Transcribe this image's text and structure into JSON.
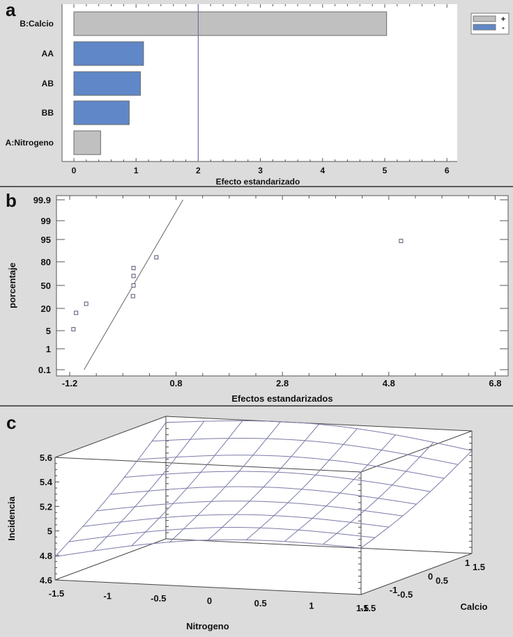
{
  "panels": {
    "a": {
      "letter": "a"
    },
    "b": {
      "letter": "b"
    },
    "c": {
      "letter": "c"
    }
  },
  "colors": {
    "background": "#dcdcdc",
    "plot_bg": "#ffffff",
    "positive_bar": "#c0c0c0",
    "negative_bar": "#6088c8",
    "reference_line": "#7070a8",
    "mesh_line": "#7a7aa8",
    "axis": "#555555"
  },
  "chart_data": [
    {
      "id": "a",
      "type": "bar",
      "orientation": "horizontal",
      "title": "",
      "categories": [
        "B:Calcio",
        "AA",
        "AB",
        "BB",
        "A:Nitrogeno"
      ],
      "values": [
        5.03,
        1.12,
        1.07,
        0.89,
        0.43
      ],
      "signs": [
        "+",
        "-",
        "-",
        "-",
        "+"
      ],
      "xlabel": "Efecto estandarizado",
      "ylabel": "",
      "xlim": [
        -0.2,
        6.2
      ],
      "xticks": [
        0,
        1,
        2,
        3,
        4,
        5,
        6
      ],
      "reference_line": 2.0,
      "legend": [
        {
          "label": "+",
          "color": "#c0c0c0"
        },
        {
          "label": "-",
          "color": "#6088c8"
        }
      ],
      "legend_position": "top-right",
      "grid": false
    },
    {
      "id": "b",
      "type": "scatter",
      "title": "",
      "xlabel": "Efectos estandarizados",
      "ylabel": "porcentaje",
      "xlim": [
        -1.45,
        7.0
      ],
      "xticks": [
        -1.2,
        0.8,
        2.8,
        4.8,
        6.8
      ],
      "yscale": "normal-probability",
      "yticks": [
        0.1,
        1,
        5,
        20,
        50,
        80,
        95,
        99,
        99.9
      ],
      "points": [
        {
          "x": -1.13,
          "y": 6
        },
        {
          "x": -1.08,
          "y": 17
        },
        {
          "x": -0.89,
          "y": 26
        },
        {
          "x": -0.01,
          "y": 36
        },
        {
          "x": 0.0,
          "y": 50
        },
        {
          "x": 0.0,
          "y": 62
        },
        {
          "x": 0.0,
          "y": 72
        },
        {
          "x": 0.43,
          "y": 83
        },
        {
          "x": 5.03,
          "y": 94
        }
      ],
      "reference_line": {
        "x1": -0.93,
        "y1": 0.1,
        "x2": 0.93,
        "y2": 99.9
      },
      "grid": false
    },
    {
      "id": "c",
      "type": "surface",
      "title": "",
      "xlabel": "Nitrogeno",
      "ylabel": "Calcio",
      "zlabel": "Incidencia",
      "xlim": [
        -1.5,
        1.5
      ],
      "ylim": [
        -1.5,
        1.5
      ],
      "zlim": [
        4.6,
        5.6
      ],
      "xticks": [
        -1.5,
        -1,
        -0.5,
        0,
        0.5,
        1,
        1.5
      ],
      "yticks": [
        -1.5,
        -1,
        -0.5,
        0,
        0.5,
        1,
        1.5
      ],
      "zticks": [
        4.6,
        4.8,
        5,
        5.2,
        5.4,
        5.6
      ],
      "grid_size": 9,
      "corner_values": {
        "N-1.5_C-1.5": 4.79,
        "N-1.5_C1.5": 5.55,
        "N1.5_C-1.5": 4.98,
        "N1.5_C1.5": 5.44
      }
    }
  ]
}
